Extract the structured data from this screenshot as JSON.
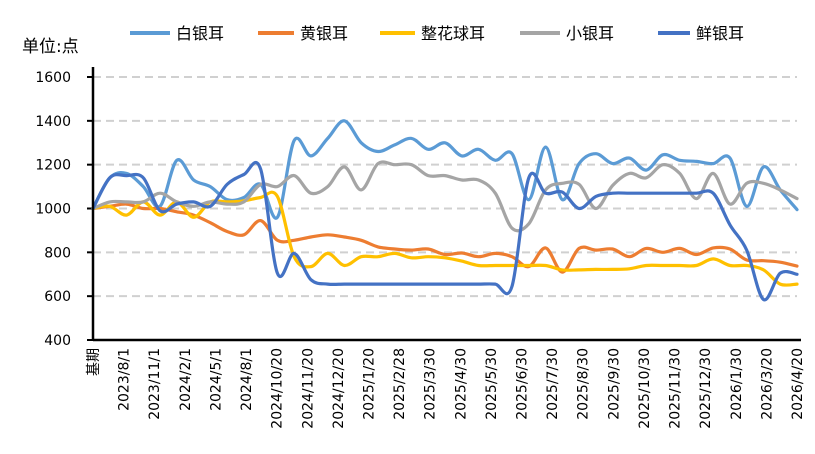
{
  "chart_data": {
    "type": "line",
    "unit_label": "单位:点",
    "ylim": [
      400,
      1600
    ],
    "yticks": [
      400,
      600,
      800,
      1000,
      1200,
      1400,
      1600
    ],
    "grid": "horizontal-dashed",
    "legend_position": "top",
    "x_tick_labels": [
      "基期",
      "2023/8/1",
      "2023/11/1",
      "2024/2/1",
      "2024/5/1",
      "2024/8/1",
      "2024/10/20",
      "2024/11/20",
      "2024/12/20",
      "2025/1/20",
      "2025/2/28",
      "2025/3/30",
      "2025/4/30",
      "2025/5/30",
      "2025/6/30",
      "2025/7/30",
      "2025/8/30",
      "2025/9/30",
      "2025/10/30",
      "2025/11/30",
      "2025/12/30",
      "2026/1/30",
      "2026/3/20",
      "2026/4/20"
    ],
    "series": [
      {
        "name": "白银耳",
        "color": "#5B9BD5",
        "values": [
          1000,
          1140,
          1160,
          1100,
          1010,
          1220,
          1130,
          1100,
          1040,
          1050,
          1110,
          960,
          1310,
          1240,
          1320,
          1400,
          1300,
          1260,
          1290,
          1320,
          1270,
          1300,
          1240,
          1270,
          1220,
          1250,
          1040,
          1280,
          1040,
          1205,
          1250,
          1205,
          1230,
          1175,
          1245,
          1220,
          1215,
          1205,
          1230,
          1010,
          1190,
          1085,
          995
        ]
      },
      {
        "name": "黄银耳",
        "color": "#ED7D31",
        "values": [
          1000,
          1010,
          1020,
          1000,
          1000,
          985,
          970,
          935,
          895,
          880,
          945,
          855,
          855,
          870,
          880,
          870,
          855,
          825,
          815,
          810,
          815,
          790,
          797,
          780,
          795,
          780,
          735,
          820,
          710,
          818,
          810,
          815,
          780,
          818,
          800,
          818,
          790,
          820,
          815,
          765,
          762,
          755,
          737
        ]
      },
      {
        "name": "整花球耳",
        "color": "#FFC000",
        "values": [
          1000,
          1010,
          970,
          1030,
          970,
          1030,
          960,
          1030,
          1030,
          1035,
          1050,
          1055,
          780,
          735,
          795,
          740,
          780,
          780,
          795,
          775,
          780,
          775,
          760,
          740,
          740,
          740,
          740,
          740,
          720,
          720,
          722,
          722,
          725,
          740,
          740,
          740,
          740,
          770,
          740,
          740,
          720,
          655,
          655
        ]
      },
      {
        "name": "小银耳",
        "color": "#A5A5A5",
        "values": [
          1000,
          1030,
          1030,
          1030,
          1070,
          1030,
          1010,
          1030,
          1020,
          1030,
          1110,
          1100,
          1150,
          1070,
          1100,
          1190,
          1085,
          1205,
          1200,
          1200,
          1150,
          1150,
          1130,
          1130,
          1070,
          910,
          930,
          1085,
          1115,
          1110,
          1000,
          1105,
          1160,
          1140,
          1200,
          1160,
          1045,
          1160,
          1020,
          1115,
          1115,
          1085,
          1045
        ]
      },
      {
        "name": "鲜银耳",
        "color": "#4472C4",
        "values": [
          1000,
          1140,
          1150,
          1140,
          990,
          1020,
          1030,
          1010,
          1110,
          1155,
          1180,
          705,
          795,
          675,
          655,
          655,
          655,
          655,
          655,
          655,
          655,
          655,
          655,
          655,
          655,
          645,
          1140,
          1070,
          1075,
          1000,
          1055,
          1070,
          1070,
          1070,
          1070,
          1070,
          1070,
          1070,
          925,
          810,
          585,
          705,
          700
        ]
      }
    ]
  }
}
